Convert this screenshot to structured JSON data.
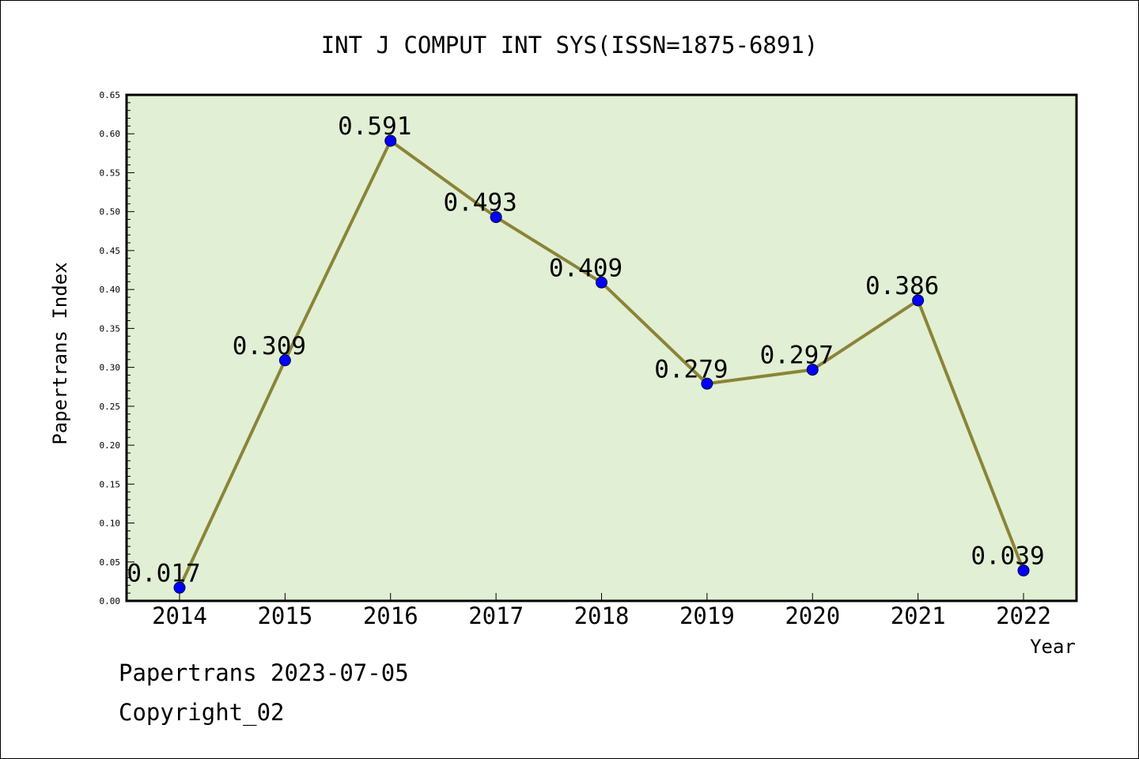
{
  "colors": {
    "plot_background": "#e1efd4",
    "line": "#8b8437",
    "marker": "#0000ff",
    "axes": "#000000"
  },
  "chart_data": {
    "type": "line",
    "title": "INT J COMPUT INT SYS(ISSN=1875-6891)",
    "xlabel": "Year",
    "ylabel": "Papertrans Index",
    "categories": [
      "2014",
      "2015",
      "2016",
      "2017",
      "2018",
      "2019",
      "2020",
      "2021",
      "2022"
    ],
    "values": [
      0.017,
      0.309,
      0.591,
      0.493,
      0.409,
      0.279,
      0.297,
      0.386,
      0.039
    ],
    "data_labels": [
      "0.017",
      "0.309",
      "0.591",
      "0.493",
      "0.409",
      "0.279",
      "0.297",
      "0.386",
      "0.039"
    ],
    "ylim": [
      0,
      0.65
    ],
    "yticks": [
      "0.00",
      "0.05",
      "0.10",
      "0.15",
      "0.20",
      "0.25",
      "0.30",
      "0.35",
      "0.40",
      "0.45",
      "0.50",
      "0.55",
      "0.60",
      "0.65"
    ],
    "grid": false,
    "legend": false
  },
  "footer": {
    "line1": "Papertrans 2023-07-05",
    "line2": "Copyright_02"
  }
}
